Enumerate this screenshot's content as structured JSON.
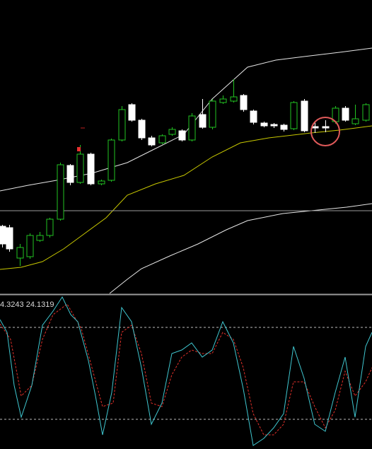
{
  "indicator_panel": {
    "label": "4.3243 24.1319"
  }
}
